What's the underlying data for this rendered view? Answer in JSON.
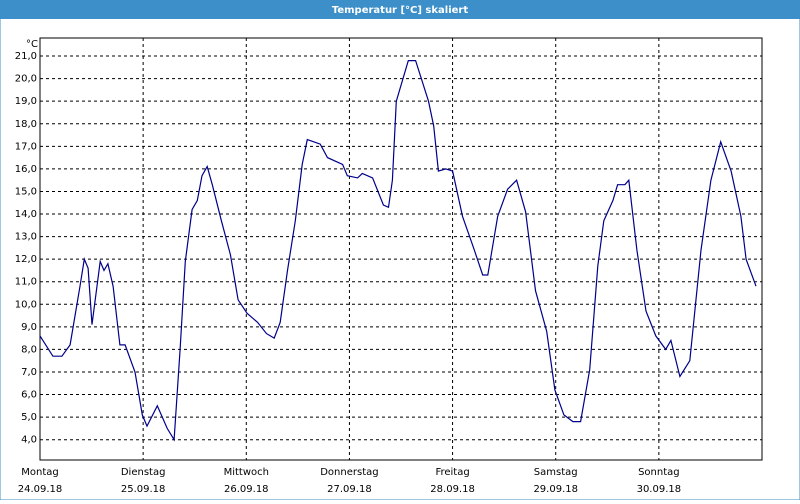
{
  "chart_data": {
    "type": "line",
    "title": "Temperatur [°C] skaliert",
    "y_unit": "°C",
    "xlim": [
      0,
      168
    ],
    "ylim": [
      3.1,
      21.8
    ],
    "xticks": [
      {
        "value": 0,
        "label": "Montag"
      },
      {
        "value": 24,
        "label": "Dienstag"
      },
      {
        "value": 48,
        "label": "Mittwoch"
      },
      {
        "value": 72,
        "label": "Donnerstag"
      },
      {
        "value": 96,
        "label": "Freitag"
      },
      {
        "value": 120,
        "label": "Samstag"
      },
      {
        "value": 144,
        "label": "Sonntag"
      }
    ],
    "xtick_dates": [
      "24.09.18",
      "25.09.18",
      "26.09.18",
      "27.09.18",
      "28.09.18",
      "29.09.18",
      "30.09.18"
    ],
    "yticks": [
      {
        "value": 4,
        "label": "4,0"
      },
      {
        "value": 5,
        "label": "5,0"
      },
      {
        "value": 6,
        "label": "6,0"
      },
      {
        "value": 7,
        "label": "7,0"
      },
      {
        "value": 8,
        "label": "8,0"
      },
      {
        "value": 9,
        "label": "9,0"
      },
      {
        "value": 10,
        "label": "10,0"
      },
      {
        "value": 11,
        "label": "11,0"
      },
      {
        "value": 12,
        "label": "12,0"
      },
      {
        "value": 13,
        "label": "13,0"
      },
      {
        "value": 14,
        "label": "14,0"
      },
      {
        "value": 15,
        "label": "15,0"
      },
      {
        "value": 16,
        "label": "16,0"
      },
      {
        "value": 17,
        "label": "17,0"
      },
      {
        "value": 18,
        "label": "18,0"
      },
      {
        "value": 19,
        "label": "19,0"
      },
      {
        "value": 20,
        "label": "20,0"
      },
      {
        "value": 21,
        "label": "21,0"
      }
    ],
    "grid": true,
    "color": "#00008b",
    "x": [
      0,
      3.0,
      5.1,
      7.0,
      9.3,
      10.3,
      11.2,
      12.1,
      14.0,
      14.9,
      15.8,
      17.0,
      18.6,
      19.8,
      22.1,
      23.8,
      24.9,
      27.3,
      29.6,
      31.2,
      32.6,
      33.8,
      35.4,
      36.6,
      37.7,
      38.9,
      40.1,
      42.2,
      44.3,
      46.1,
      48.2,
      50.6,
      52.7,
      54.5,
      55.9,
      57.6,
      59.4,
      61.0,
      62.2,
      65.2,
      66.9,
      70.4,
      71.5,
      73.9,
      75.0,
      77.4,
      79.9,
      81.1,
      82.0,
      82.9,
      84.3,
      85.7,
      87.4,
      90.4,
      91.6,
      92.7,
      94.4,
      96.0,
      98.3,
      100.9,
      103.0,
      104.2,
      106.5,
      108.8,
      110.9,
      113.0,
      115.3,
      117.9,
      119.8,
      121.9,
      124.0,
      125.8,
      127.9,
      129.8,
      131.2,
      133.3,
      134.4,
      136.1,
      137.0,
      138.9,
      141.0,
      143.3,
      145.6,
      146.8,
      148.9,
      151.2,
      153.8,
      156.1,
      158.4,
      160.8,
      163.1,
      164.3,
      166.6
    ],
    "values": [
      8.6,
      7.7,
      7.7,
      8.2,
      10.8,
      12.0,
      11.6,
      9.1,
      11.9,
      11.5,
      11.8,
      10.8,
      8.2,
      8.2,
      7.0,
      5.1,
      4.6,
      5.5,
      4.5,
      4.0,
      8.0,
      11.9,
      14.2,
      14.6,
      15.7,
      16.1,
      15.3,
      13.7,
      12.2,
      10.2,
      9.6,
      9.2,
      8.7,
      8.5,
      9.2,
      11.5,
      13.7,
      16.2,
      17.3,
      17.1,
      16.5,
      16.2,
      15.7,
      15.6,
      15.8,
      15.6,
      14.4,
      14.3,
      15.5,
      19.0,
      19.9,
      20.8,
      20.8,
      19.0,
      17.9,
      15.9,
      16.0,
      15.9,
      13.9,
      12.5,
      11.3,
      11.3,
      13.9,
      15.1,
      15.5,
      14.1,
      10.6,
      8.8,
      6.2,
      5.1,
      4.8,
      4.8,
      7.1,
      11.7,
      13.7,
      14.6,
      15.3,
      15.3,
      15.5,
      12.4,
      9.7,
      8.6,
      8.0,
      8.4,
      6.8,
      7.5,
      12.4,
      15.5,
      17.2,
      15.9,
      13.9,
      12.0,
      10.8
    ]
  }
}
